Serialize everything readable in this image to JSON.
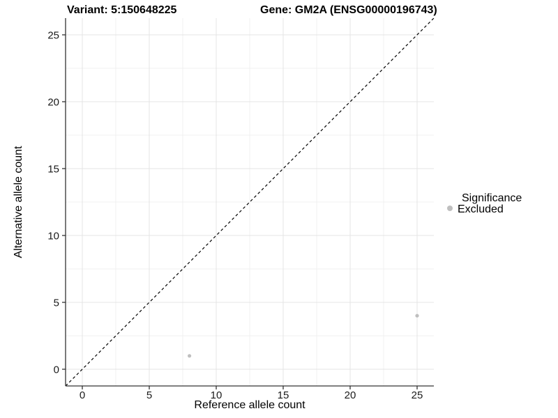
{
  "chart_data": {
    "type": "scatter",
    "title_left": "Variant: 5:150648225",
    "title_right": "Gene: GM2A (ENSG00000196743)",
    "xlabel": "Reference allele count",
    "ylabel": "Alternative allele count",
    "xlim": [
      -1.25,
      26.25
    ],
    "ylim": [
      -1.25,
      26.25
    ],
    "x_ticks": [
      0,
      5,
      10,
      15,
      20,
      25
    ],
    "y_ticks": [
      0,
      5,
      10,
      15,
      20,
      25
    ],
    "minor_step": 2.5,
    "series": [
      {
        "name": "Excluded",
        "color": "#bfbfbf",
        "points": [
          {
            "x": 8,
            "y": 1
          },
          {
            "x": 25,
            "y": 4
          }
        ]
      }
    ],
    "reference_line": {
      "type": "identity",
      "from": [
        -1.25,
        -1.25
      ],
      "to": [
        26.25,
        26.25
      ],
      "style": "dashed",
      "color": "#000000"
    },
    "grid": {
      "major": true,
      "minor": true,
      "major_color": "#e4e4e4",
      "minor_color": "#f1f1f1"
    },
    "axis_line_color": "#333333",
    "legend": {
      "position": "right",
      "title": "Significance",
      "entries": [
        {
          "label": "Excluded",
          "color": "#bfbfbf"
        }
      ]
    }
  }
}
